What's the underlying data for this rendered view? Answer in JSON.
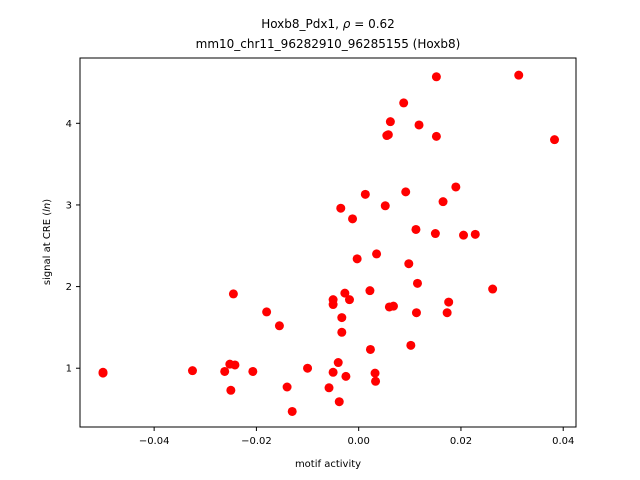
{
  "chart_data": {
    "type": "scatter",
    "title_line1_pre": "Hoxb8_Pdx1, ",
    "title_line1_rho": "ρ",
    "title_line1_post": " = 0.62",
    "title_line2": "mm10_chr11_96282910_96285155 (Hoxb8)",
    "xlabel": "motif activity",
    "ylabel_pre": "signal at CRE (",
    "ylabel_italic": "ln",
    "ylabel_post": ")",
    "xlim": [
      -0.0545,
      0.0425
    ],
    "ylim": [
      0.28,
      4.8
    ],
    "xticks": [
      -0.04,
      -0.02,
      0.0,
      0.02,
      0.04
    ],
    "xtick_labels": [
      "−0.04",
      "−0.02",
      "0.00",
      "0.02",
      "0.04"
    ],
    "yticks": [
      1,
      2,
      3,
      4
    ],
    "ytick_labels": [
      "1",
      "2",
      "3",
      "4"
    ],
    "marker_color": "#ff0000",
    "points": [
      {
        "x": -0.05,
        "y": 0.95
      },
      {
        "x": -0.05,
        "y": 0.94
      },
      {
        "x": -0.0325,
        "y": 0.97
      },
      {
        "x": -0.0262,
        "y": 0.96
      },
      {
        "x": -0.0252,
        "y": 1.05
      },
      {
        "x": -0.0242,
        "y": 1.04
      },
      {
        "x": -0.025,
        "y": 0.73
      },
      {
        "x": -0.0245,
        "y": 1.91
      },
      {
        "x": -0.0207,
        "y": 0.96
      },
      {
        "x": -0.018,
        "y": 1.69
      },
      {
        "x": -0.0155,
        "y": 1.52
      },
      {
        "x": -0.014,
        "y": 0.77
      },
      {
        "x": -0.013,
        "y": 0.47
      },
      {
        "x": -0.01,
        "y": 1.0
      },
      {
        "x": -0.0058,
        "y": 0.76
      },
      {
        "x": -0.005,
        "y": 1.84
      },
      {
        "x": -0.005,
        "y": 1.78
      },
      {
        "x": -0.005,
        "y": 0.95
      },
      {
        "x": -0.004,
        "y": 1.07
      },
      {
        "x": -0.0038,
        "y": 0.59
      },
      {
        "x": -0.0035,
        "y": 2.96
      },
      {
        "x": -0.0033,
        "y": 1.62
      },
      {
        "x": -0.0033,
        "y": 1.44
      },
      {
        "x": -0.0027,
        "y": 1.92
      },
      {
        "x": -0.0025,
        "y": 0.9
      },
      {
        "x": -0.0018,
        "y": 1.84
      },
      {
        "x": -0.0012,
        "y": 2.83
      },
      {
        "x": -0.0003,
        "y": 2.34
      },
      {
        "x": 0.0013,
        "y": 3.13
      },
      {
        "x": 0.0022,
        "y": 1.95
      },
      {
        "x": 0.0023,
        "y": 1.23
      },
      {
        "x": 0.0032,
        "y": 0.94
      },
      {
        "x": 0.0033,
        "y": 0.84
      },
      {
        "x": 0.0035,
        "y": 2.4
      },
      {
        "x": 0.0052,
        "y": 2.99
      },
      {
        "x": 0.0055,
        "y": 3.85
      },
      {
        "x": 0.0058,
        "y": 3.86
      },
      {
        "x": 0.006,
        "y": 1.75
      },
      {
        "x": 0.0062,
        "y": 4.02
      },
      {
        "x": 0.0068,
        "y": 1.76
      },
      {
        "x": 0.0088,
        "y": 4.25
      },
      {
        "x": 0.0092,
        "y": 3.16
      },
      {
        "x": 0.0098,
        "y": 2.28
      },
      {
        "x": 0.0102,
        "y": 1.28
      },
      {
        "x": 0.0112,
        "y": 2.7
      },
      {
        "x": 0.0113,
        "y": 1.68
      },
      {
        "x": 0.0115,
        "y": 2.04
      },
      {
        "x": 0.0118,
        "y": 3.98
      },
      {
        "x": 0.015,
        "y": 2.65
      },
      {
        "x": 0.0152,
        "y": 4.57
      },
      {
        "x": 0.0152,
        "y": 3.84
      },
      {
        "x": 0.0165,
        "y": 3.04
      },
      {
        "x": 0.0173,
        "y": 1.68
      },
      {
        "x": 0.0176,
        "y": 1.81
      },
      {
        "x": 0.019,
        "y": 3.22
      },
      {
        "x": 0.0205,
        "y": 2.63
      },
      {
        "x": 0.0228,
        "y": 2.64
      },
      {
        "x": 0.0262,
        "y": 1.97
      },
      {
        "x": 0.0313,
        "y": 4.59
      },
      {
        "x": 0.0383,
        "y": 3.8
      }
    ]
  }
}
